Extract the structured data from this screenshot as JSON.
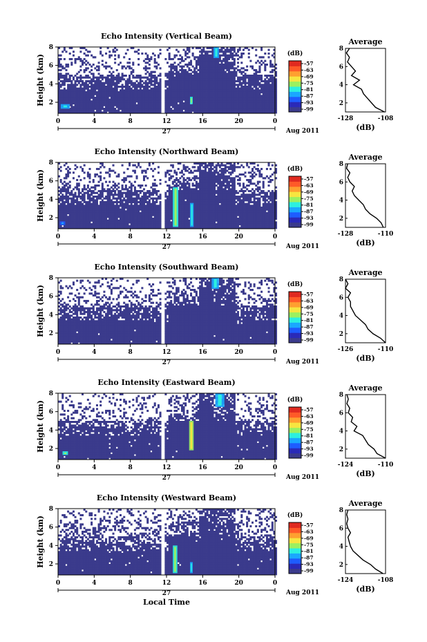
{
  "figure": {
    "shared": {
      "ylabel": "Height (km)",
      "x_tick_labels": [
        "0",
        "4",
        "8",
        "12",
        "16",
        "20",
        "0"
      ],
      "day_label": "27",
      "month_label": "Aug 2011",
      "xlabel": "Local Time",
      "colorbar_unit": "(dB)",
      "colorbar_ticks": [
        "-57",
        "-63",
        "-69",
        "-75",
        "-81",
        "-87",
        "-93",
        "-99"
      ],
      "colorscale": [
        "#3b3b8c",
        "#2a2ab8",
        "#1e5cff",
        "#1aa8ff",
        "#2cf0e0",
        "#9cf060",
        "#f7e540",
        "#ffa030",
        "#ff5a28",
        "#e02a20"
      ],
      "profile_title": "Average",
      "profile_xlabel": "(dB)",
      "profile_y_ticks": [
        "2",
        "4",
        "6",
        "8"
      ],
      "background": "#ffffff"
    }
  },
  "chart_data": [
    {
      "type": "heatmap",
      "title": "Echo Intensity (Vertical Beam)",
      "xlabel": "",
      "ylabel": "Height (km)",
      "x_range_hours": [
        0,
        24
      ],
      "ylim": [
        0.8,
        8
      ],
      "data_gap_hours": [
        11.2,
        11.7
      ],
      "colorbar": {
        "label": "(dB)",
        "range": [
          -99,
          -57
        ]
      },
      "features": [
        {
          "kind": "intensity_patch",
          "t_start": 0.3,
          "t_end": 1.3,
          "h_start": 1.3,
          "h_end": 1.8,
          "level": 0.4
        },
        {
          "kind": "intensity_patch",
          "t_start": 14.6,
          "t_end": 14.9,
          "h_start": 1.8,
          "h_end": 2.6,
          "level": 0.55
        },
        {
          "kind": "intensity_patch",
          "t_start": 17.2,
          "t_end": 17.8,
          "h_start": 6.8,
          "h_end": 8.0,
          "level": 0.4
        }
      ],
      "profile": {
        "title": "Average",
        "xlabel": "(dB)",
        "xlim": [
          -128,
          -108
        ],
        "ylim": [
          1,
          8
        ],
        "x_tick_labels": [
          "-128",
          "-108"
        ],
        "heights": [
          1.0,
          1.5,
          2.0,
          2.5,
          3.0,
          3.5,
          4.0,
          4.5,
          5.0,
          5.5,
          6.0,
          6.5,
          7.0,
          7.5,
          8.0
        ],
        "values": [
          -108.5,
          -113,
          -115,
          -117,
          -119,
          -120,
          -124,
          -121,
          -125,
          -123,
          -125,
          -127,
          -126,
          -127.5,
          -126
        ]
      }
    },
    {
      "type": "heatmap",
      "title": "Echo Intensity (Northward Beam)",
      "xlabel": "",
      "ylabel": "Height (km)",
      "x_range_hours": [
        0,
        24
      ],
      "ylim": [
        0.8,
        8
      ],
      "data_gap_hours": [
        11.2,
        11.7
      ],
      "colorbar": {
        "label": "(dB)",
        "range": [
          -99,
          -57
        ]
      },
      "features": [
        {
          "kind": "intensity_patch",
          "t_start": 12.7,
          "t_end": 13.3,
          "h_start": 1.0,
          "h_end": 5.3,
          "level": 0.55
        },
        {
          "kind": "intensity_patch",
          "t_start": 14.6,
          "t_end": 15.0,
          "h_start": 1.0,
          "h_end": 3.6,
          "level": 0.45
        },
        {
          "kind": "intensity_patch",
          "t_start": 0.2,
          "t_end": 0.8,
          "h_start": 1.2,
          "h_end": 1.6,
          "level": 0.35
        }
      ],
      "profile": {
        "title": "Average",
        "xlabel": "(dB)",
        "xlim": [
          -128,
          -110
        ],
        "ylim": [
          1,
          8
        ],
        "x_tick_labels": [
          "-128",
          "-110"
        ],
        "heights": [
          1.0,
          1.5,
          2.0,
          2.5,
          3.0,
          3.5,
          4.0,
          4.5,
          5.0,
          5.5,
          6.0,
          6.5,
          7.0,
          7.5,
          8.0
        ],
        "values": [
          -111,
          -112,
          -114,
          -117,
          -119,
          -120,
          -122,
          -124,
          -125,
          -124,
          -126,
          -127,
          -126,
          -127.5,
          -127
        ]
      }
    },
    {
      "type": "heatmap",
      "title": "Echo Intensity (Southward Beam)",
      "xlabel": "",
      "ylabel": "Height (km)",
      "x_range_hours": [
        0,
        24
      ],
      "ylim": [
        0.8,
        8
      ],
      "data_gap_hours": [
        11.2,
        11.7
      ],
      "colorbar": {
        "label": "(dB)",
        "range": [
          -99,
          -57
        ]
      },
      "features": [
        {
          "kind": "intensity_patch",
          "t_start": 17.0,
          "t_end": 17.8,
          "h_start": 6.8,
          "h_end": 8.0,
          "level": 0.4
        }
      ],
      "profile": {
        "title": "Average",
        "xlabel": "(dB)",
        "xlim": [
          -126,
          -110
        ],
        "ylim": [
          1,
          8
        ],
        "x_tick_labels": [
          "-126",
          "-110"
        ],
        "heights": [
          1.0,
          1.5,
          2.0,
          2.5,
          3.0,
          3.5,
          4.0,
          4.5,
          5.0,
          5.5,
          6.0,
          6.5,
          7.0,
          7.5,
          8.0
        ],
        "values": [
          -110,
          -112,
          -115,
          -117,
          -118,
          -120,
          -122,
          -123,
          -124,
          -124,
          -125,
          -124,
          -126,
          -125,
          -126
        ]
      }
    },
    {
      "type": "heatmap",
      "title": "Echo Intensity (Eastward Beam)",
      "xlabel": "",
      "ylabel": "Height (km)",
      "x_range_hours": [
        0,
        24
      ],
      "ylim": [
        0.8,
        8
      ],
      "data_gap_hours": [
        11.2,
        11.7
      ],
      "colorbar": {
        "label": "(dB)",
        "range": [
          -99,
          -57
        ]
      },
      "features": [
        {
          "kind": "intensity_patch",
          "t_start": 14.5,
          "t_end": 15.0,
          "h_start": 1.8,
          "h_end": 5.0,
          "level": 0.7
        },
        {
          "kind": "intensity_patch",
          "t_start": 0.5,
          "t_end": 1.1,
          "h_start": 1.3,
          "h_end": 1.7,
          "level": 0.5
        },
        {
          "kind": "intensity_patch",
          "t_start": 17.4,
          "t_end": 18.4,
          "h_start": 6.5,
          "h_end": 8.0,
          "level": 0.45
        }
      ],
      "profile": {
        "title": "Average",
        "xlabel": "(dB)",
        "xlim": [
          -124,
          -110
        ],
        "ylim": [
          1,
          8
        ],
        "x_tick_labels": [
          "-124",
          "-110"
        ],
        "heights": [
          1.0,
          1.5,
          2.0,
          2.5,
          3.0,
          3.5,
          4.0,
          4.5,
          5.0,
          5.5,
          6.0,
          6.5,
          7.0,
          7.5,
          8.0
        ],
        "values": [
          -110,
          -113,
          -114,
          -116,
          -117,
          -118,
          -121,
          -120,
          -122,
          -121.5,
          -123,
          -122.5,
          -123.5,
          -123,
          -123.5
        ]
      }
    },
    {
      "type": "heatmap",
      "title": "Echo Intensity (Westward Beam)",
      "xlabel": "Local Time",
      "ylabel": "Height (km)",
      "x_range_hours": [
        0,
        24
      ],
      "ylim": [
        0.8,
        8
      ],
      "data_gap_hours": [
        11.2,
        11.7
      ],
      "colorbar": {
        "label": "(dB)",
        "range": [
          -99,
          -57
        ]
      },
      "features": [
        {
          "kind": "intensity_patch",
          "t_start": 12.7,
          "t_end": 13.2,
          "h_start": 1.0,
          "h_end": 4.0,
          "level": 0.55
        },
        {
          "kind": "intensity_patch",
          "t_start": 14.6,
          "t_end": 14.9,
          "h_start": 1.0,
          "h_end": 2.2,
          "level": 0.45
        }
      ],
      "profile": {
        "title": "Average",
        "xlabel": "(dB)",
        "xlim": [
          -124,
          -108
        ],
        "ylim": [
          1,
          8
        ],
        "x_tick_labels": [
          "-124",
          "-108"
        ],
        "heights": [
          1.0,
          1.5,
          2.0,
          2.5,
          3.0,
          3.5,
          4.0,
          4.5,
          5.0,
          5.5,
          6.0,
          6.5,
          7.0,
          7.5,
          8.0
        ],
        "values": [
          -109,
          -112,
          -114,
          -117,
          -119,
          -121,
          -122,
          -122.5,
          -123,
          -122,
          -123,
          -123.5,
          -123,
          -123.5,
          -123
        ]
      }
    }
  ]
}
